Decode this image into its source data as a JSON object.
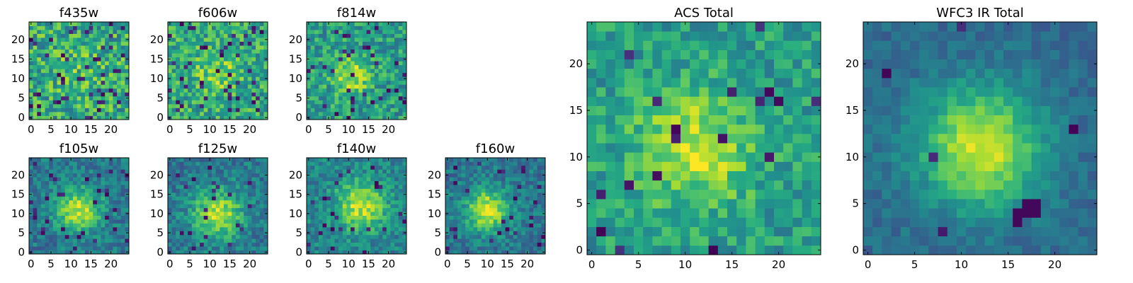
{
  "chart_data": [
    {
      "type": "heatmap",
      "id": "f435w",
      "title": "f435w",
      "grid_size": 25,
      "xlim": [
        -0.5,
        24.5
      ],
      "ylim": [
        -0.5,
        24.5
      ],
      "xticks": [
        0,
        5,
        10,
        15,
        20
      ],
      "yticks": [
        0,
        5,
        10,
        15,
        20
      ],
      "pattern": {
        "center": [
          12,
          12
        ],
        "peak": 0.1,
        "sigma": 5.0,
        "noise": 0.5,
        "base": 0.6,
        "seed": 11,
        "dark_pixel_fraction": 0.08
      }
    },
    {
      "type": "heatmap",
      "id": "f606w",
      "title": "f606w",
      "grid_size": 25,
      "xlim": [
        -0.5,
        24.5
      ],
      "ylim": [
        -0.5,
        24.5
      ],
      "xticks": [
        0,
        5,
        10,
        15,
        20
      ],
      "yticks": [
        0,
        5,
        10,
        15,
        20
      ],
      "pattern": {
        "center": [
          12,
          12
        ],
        "peak": 0.2,
        "sigma": 4.0,
        "noise": 0.45,
        "base": 0.6,
        "seed": 23,
        "dark_pixel_fraction": 0.06
      }
    },
    {
      "type": "heatmap",
      "id": "f814w",
      "title": "f814w",
      "grid_size": 25,
      "xlim": [
        -0.5,
        24.5
      ],
      "ylim": [
        -0.5,
        24.5
      ],
      "xticks": [
        0,
        5,
        10,
        15,
        20
      ],
      "yticks": [
        0,
        5,
        10,
        15,
        20
      ],
      "pattern": {
        "center": [
          11,
          11
        ],
        "peak": 0.35,
        "sigma": 3.5,
        "noise": 0.4,
        "base": 0.55,
        "seed": 37,
        "dark_pixel_fraction": 0.05
      }
    },
    {
      "type": "heatmap",
      "id": "f105w",
      "title": "f105w",
      "grid_size": 25,
      "xlim": [
        -0.5,
        24.5
      ],
      "ylim": [
        -0.5,
        24.5
      ],
      "xticks": [
        0,
        5,
        10,
        15,
        20
      ],
      "yticks": [
        0,
        5,
        10,
        15,
        20
      ],
      "pattern": {
        "center": [
          12,
          11
        ],
        "peak": 0.5,
        "sigma": 4.0,
        "noise": 0.3,
        "base": 0.4,
        "seed": 41,
        "dark_pixel_fraction": 0.04
      }
    },
    {
      "type": "heatmap",
      "id": "f125w",
      "title": "f125w",
      "grid_size": 25,
      "xlim": [
        -0.5,
        24.5
      ],
      "ylim": [
        -0.5,
        24.5
      ],
      "xticks": [
        0,
        5,
        10,
        15,
        20
      ],
      "yticks": [
        0,
        5,
        10,
        15,
        20
      ],
      "pattern": {
        "center": [
          12,
          10
        ],
        "peak": 0.5,
        "sigma": 4.5,
        "noise": 0.3,
        "base": 0.4,
        "seed": 53,
        "dark_pixel_fraction": 0.04
      }
    },
    {
      "type": "heatmap",
      "id": "f140w",
      "title": "f140w",
      "grid_size": 25,
      "xlim": [
        -0.5,
        24.5
      ],
      "ylim": [
        -0.5,
        24.5
      ],
      "xticks": [
        0,
        5,
        10,
        15,
        20
      ],
      "yticks": [
        0,
        5,
        10,
        15,
        20
      ],
      "pattern": {
        "center": [
          13,
          12
        ],
        "peak": 0.45,
        "sigma": 4.5,
        "noise": 0.3,
        "base": 0.45,
        "seed": 67,
        "dark_pixel_fraction": 0.04
      }
    },
    {
      "type": "heatmap",
      "id": "f160w",
      "title": "f160w",
      "grid_size": 25,
      "xlim": [
        -0.5,
        24.5
      ],
      "ylim": [
        -0.5,
        24.5
      ],
      "xticks": [
        0,
        5,
        10,
        15,
        20
      ],
      "yticks": [
        0,
        5,
        10,
        15,
        20
      ],
      "pattern": {
        "center": [
          10,
          11
        ],
        "peak": 0.55,
        "sigma": 3.8,
        "noise": 0.28,
        "base": 0.4,
        "seed": 79,
        "dark_pixel_fraction": 0.03
      }
    },
    {
      "type": "heatmap",
      "id": "acs-total",
      "title": "ACS Total",
      "grid_size": 25,
      "xlim": [
        -0.5,
        24.5
      ],
      "ylim": [
        -0.5,
        24.5
      ],
      "xticks": [
        0,
        5,
        10,
        15,
        20
      ],
      "yticks": [
        0,
        5,
        10,
        15,
        20
      ],
      "pattern": {
        "center": [
          11,
          11
        ],
        "peak": 0.35,
        "sigma": 4.5,
        "noise": 0.32,
        "base": 0.55,
        "seed": 97,
        "dark_pixel_fraction": 0.04
      }
    },
    {
      "type": "heatmap",
      "id": "wfc3-ir-total",
      "title": "WFC3 IR Total",
      "grid_size": 25,
      "xlim": [
        -0.5,
        24.5
      ],
      "ylim": [
        -0.5,
        24.5
      ],
      "xticks": [
        0,
        5,
        10,
        15,
        20
      ],
      "yticks": [
        0,
        5,
        10,
        15,
        20
      ],
      "pattern": {
        "center": [
          12,
          11
        ],
        "peak": 0.6,
        "sigma": 4.5,
        "noise": 0.16,
        "base": 0.35,
        "seed": 113,
        "dark_pixel_fraction": 0.015,
        "dark_patch": [
          [
            16,
            4
          ],
          [
            17,
            4
          ],
          [
            18,
            4
          ],
          [
            17,
            5
          ],
          [
            18,
            5
          ],
          [
            16,
            3
          ]
        ]
      }
    }
  ],
  "colors": {
    "colormap": "viridis",
    "frame": "#000000",
    "background": "#ffffff"
  }
}
